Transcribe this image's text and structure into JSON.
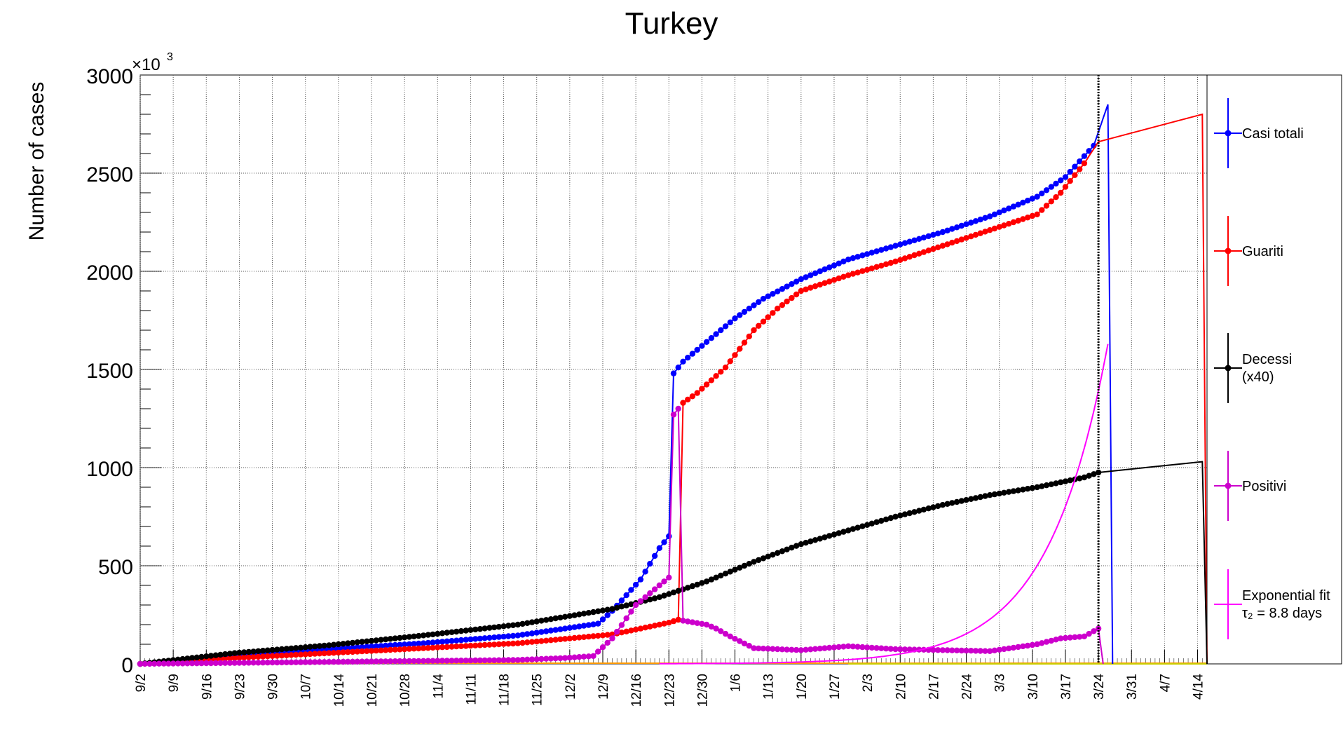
{
  "chart_data": {
    "type": "line",
    "title": "Turkey",
    "ylabel": "Number of cases",
    "y_exponent_label": "×10",
    "y_exponent_power": "3",
    "ylim": [
      0,
      3000
    ],
    "yticks": [
      "0",
      "500",
      "1000",
      "1500",
      "2000",
      "2500",
      "3000"
    ],
    "x_start_day": 0,
    "x_end_day": 226,
    "xlim": [
      0,
      226
    ],
    "xtick_labels": [
      "9/2",
      "9/9",
      "9/16",
      "9/23",
      "9/30",
      "10/7",
      "10/14",
      "10/21",
      "10/28",
      "11/4",
      "11/11",
      "11/18",
      "11/25",
      "12/2",
      "12/9",
      "12/16",
      "12/23",
      "12/30",
      "1/6",
      "1/13",
      "1/20",
      "1/27",
      "2/3",
      "2/10",
      "2/17",
      "2/24",
      "3/3",
      "3/10",
      "3/17",
      "3/24",
      "3/31",
      "4/7",
      "4/14"
    ],
    "xtick_step_days": 7,
    "grid": true,
    "legend_position": "right",
    "vline_day": 203,
    "series": [
      {
        "name": "Casi totali",
        "color": "#0000ff",
        "markers": true,
        "marker_range": [
          0,
          202
        ],
        "anchors": [
          [
            0,
            0
          ],
          [
            20,
            40
          ],
          [
            40,
            75
          ],
          [
            60,
            105
          ],
          [
            80,
            145
          ],
          [
            90,
            180
          ],
          [
            97,
            205
          ],
          [
            100,
            270
          ],
          [
            106,
            430
          ],
          [
            110,
            590
          ],
          [
            112,
            650
          ],
          [
            113,
            1480
          ],
          [
            115,
            1540
          ],
          [
            120,
            1640
          ],
          [
            126,
            1760
          ],
          [
            132,
            1860
          ],
          [
            140,
            1960
          ],
          [
            150,
            2060
          ],
          [
            160,
            2130
          ],
          [
            170,
            2200
          ],
          [
            180,
            2280
          ],
          [
            190,
            2380
          ],
          [
            196,
            2480
          ],
          [
            202,
            2640
          ],
          [
            205,
            2850
          ]
        ],
        "tail": [
          [
            205,
            2850
          ],
          [
            206,
            0
          ]
        ]
      },
      {
        "name": "Guariti",
        "color": "#ff0000",
        "markers": true,
        "marker_range": [
          0,
          200
        ],
        "anchors": [
          [
            0,
            0
          ],
          [
            20,
            30
          ],
          [
            40,
            55
          ],
          [
            60,
            80
          ],
          [
            80,
            105
          ],
          [
            100,
            150
          ],
          [
            112,
            210
          ],
          [
            114,
            225
          ],
          [
            115,
            1330
          ],
          [
            118,
            1380
          ],
          [
            124,
            1510
          ],
          [
            130,
            1700
          ],
          [
            135,
            1810
          ],
          [
            140,
            1900
          ],
          [
            150,
            1980
          ],
          [
            160,
            2050
          ],
          [
            170,
            2130
          ],
          [
            180,
            2210
          ],
          [
            190,
            2290
          ],
          [
            195,
            2400
          ],
          [
            200,
            2550
          ],
          [
            203,
            2660
          ]
        ],
        "tail": [
          [
            203,
            2660
          ],
          [
            225,
            2800
          ],
          [
            226,
            0
          ]
        ]
      },
      {
        "name": "Decessi",
        "name_line2": "(x40)",
        "color": "#000000",
        "markers": true,
        "marker_range": [
          0,
          203
        ],
        "anchors": [
          [
            0,
            0
          ],
          [
            20,
            55
          ],
          [
            40,
            95
          ],
          [
            60,
            145
          ],
          [
            80,
            200
          ],
          [
            100,
            280
          ],
          [
            110,
            340
          ],
          [
            120,
            420
          ],
          [
            130,
            520
          ],
          [
            140,
            610
          ],
          [
            150,
            680
          ],
          [
            160,
            750
          ],
          [
            170,
            810
          ],
          [
            180,
            860
          ],
          [
            190,
            900
          ],
          [
            200,
            950
          ],
          [
            203,
            975
          ]
        ],
        "tail": [
          [
            203,
            975
          ],
          [
            225,
            1030
          ],
          [
            226,
            0
          ]
        ]
      },
      {
        "name": "Positivi",
        "color": "#cc00cc",
        "markers": true,
        "marker_range": [
          0,
          203
        ],
        "anchors": [
          [
            0,
            0
          ],
          [
            20,
            5
          ],
          [
            40,
            10
          ],
          [
            60,
            15
          ],
          [
            80,
            20
          ],
          [
            90,
            30
          ],
          [
            96,
            40
          ],
          [
            100,
            130
          ],
          [
            105,
            300
          ],
          [
            109,
            380
          ],
          [
            112,
            440
          ],
          [
            113,
            1270
          ],
          [
            114,
            1300
          ],
          [
            115,
            220
          ],
          [
            120,
            200
          ],
          [
            122,
            180
          ],
          [
            125,
            140
          ],
          [
            130,
            80
          ],
          [
            140,
            70
          ],
          [
            150,
            90
          ],
          [
            160,
            75
          ],
          [
            170,
            70
          ],
          [
            180,
            65
          ],
          [
            190,
            100
          ],
          [
            195,
            130
          ],
          [
            200,
            140
          ],
          [
            203,
            180
          ]
        ],
        "tail": [
          [
            203,
            180
          ],
          [
            204,
            0
          ]
        ]
      },
      {
        "name": "Exponential fit",
        "name_line2": "τ₂ = 8.8 days",
        "color": "#ff00ff",
        "markers": false,
        "fit_tau_days": 8.8,
        "fit_value_at_day_190": 500,
        "fit_start_day": 110,
        "fit_end_day": 205
      }
    ]
  }
}
